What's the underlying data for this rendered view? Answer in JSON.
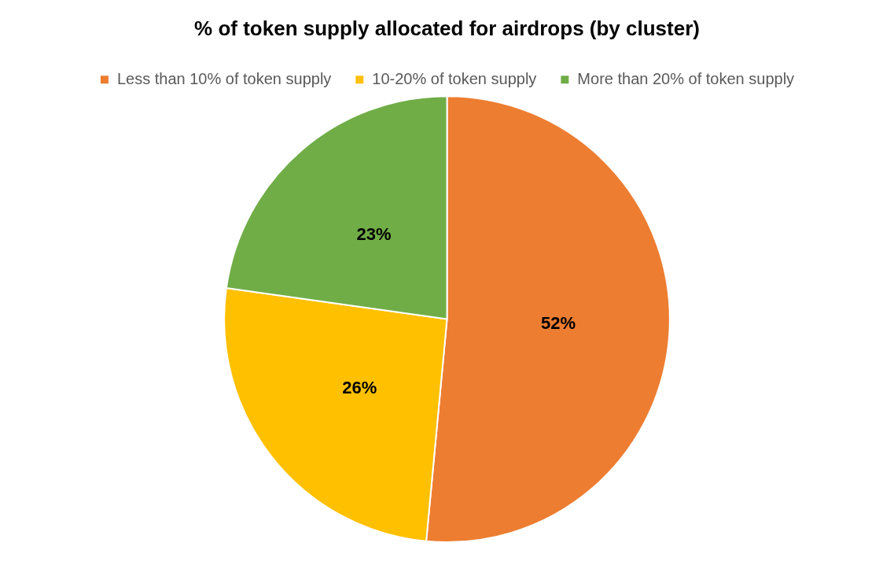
{
  "chart_data": {
    "type": "pie",
    "title": "% of token supply allocated for airdrops (by cluster)",
    "categories": [
      "Less than 10% of token supply",
      "10-20% of token supply",
      "More than 20% of token supply"
    ],
    "values": [
      52,
      26,
      23
    ],
    "colors": [
      "#ed7d31",
      "#ffc000",
      "#70ad47"
    ],
    "value_labels": [
      "52%",
      "26%",
      "23%"
    ],
    "legend": "top"
  }
}
